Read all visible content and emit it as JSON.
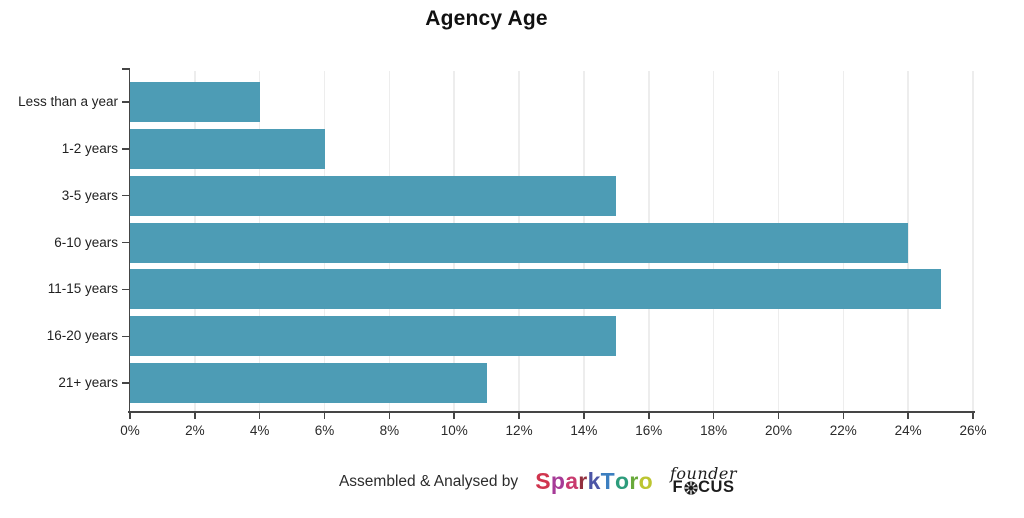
{
  "chart_data": {
    "type": "bar",
    "orientation": "horizontal",
    "title": "Agency Age",
    "categories": [
      "Less than a year",
      "1-2 years",
      "3-5 years",
      "6-10 years",
      "11-15 years",
      "16-20 years",
      "21+ years"
    ],
    "values": [
      4,
      6,
      15,
      24,
      25,
      15,
      11
    ],
    "value_unit": "%",
    "xlim": [
      0,
      26
    ],
    "x_tick_step": 2,
    "x_tick_labels": [
      "0%",
      "2%",
      "4%",
      "6%",
      "8%",
      "10%",
      "12%",
      "14%",
      "16%",
      "18%",
      "20%",
      "22%",
      "24%",
      "26%"
    ],
    "bar_color": "#4D9CB5",
    "grid": true,
    "gridline_color": "#ededed",
    "axis_color": "#454545",
    "legend": false
  },
  "footer": {
    "attribution": "Assembled & Analysed by",
    "sparktoro": {
      "name": "SparkToro",
      "letters": [
        {
          "ch": "S",
          "color": "#D0354E"
        },
        {
          "ch": "p",
          "color": "#A63B97"
        },
        {
          "ch": "a",
          "color": "#C93A6E"
        },
        {
          "ch": "r",
          "color": "#93303F"
        },
        {
          "ch": "k",
          "color": "#4C55A6"
        },
        {
          "ch": "T",
          "color": "#3C7FC0"
        },
        {
          "ch": "o",
          "color": "#2D9C7C"
        },
        {
          "ch": "r",
          "color": "#68A93A"
        },
        {
          "ch": "o",
          "color": "#BCC530"
        }
      ]
    },
    "founderfocus": {
      "script": "founder",
      "focus_prefix": "F",
      "focus_suffix": "CUS",
      "color": "#1D1D1D"
    }
  }
}
